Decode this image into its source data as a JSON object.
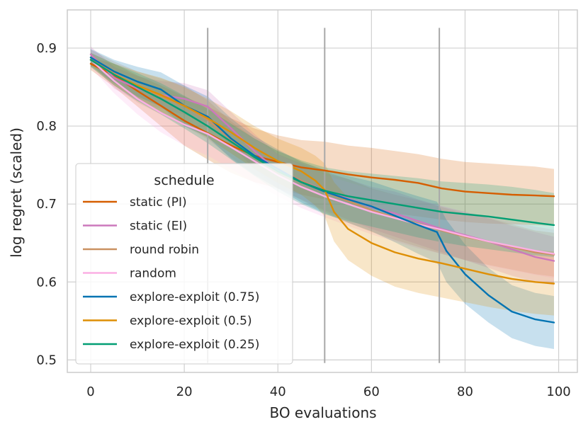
{
  "chart_data": {
    "type": "line",
    "title": "",
    "xlabel": "BO evaluations",
    "ylabel": "log regret (scaled)",
    "xlim": [
      -5,
      104
    ],
    "ylim": [
      0.484,
      0.949
    ],
    "xticks": [
      0,
      20,
      40,
      60,
      80,
      100
    ],
    "yticks": [
      0.5,
      0.6,
      0.7,
      0.8,
      0.9
    ],
    "ytick_labels": [
      "0.5",
      "0.6",
      "0.7",
      "0.8",
      "0.9"
    ],
    "grid": true,
    "legend": {
      "title": "schedule",
      "position": "lower-left"
    },
    "vertical_lines": [
      {
        "x": 25,
        "y_from": 0.496,
        "y_to": 0.926
      },
      {
        "x": 50,
        "y_from": 0.496,
        "y_to": 0.926
      },
      {
        "x": 74.5,
        "y_from": 0.496,
        "y_to": 0.926
      }
    ],
    "series": [
      {
        "name": "static (PI)",
        "color": "#d55e00",
        "x": [
          0,
          5,
          10,
          15,
          20,
          25,
          30,
          35,
          40,
          45,
          50,
          55,
          60,
          65,
          70,
          75,
          80,
          85,
          90,
          95,
          99
        ],
        "y": [
          0.88,
          0.865,
          0.845,
          0.826,
          0.807,
          0.791,
          0.775,
          0.762,
          0.754,
          0.747,
          0.743,
          0.738,
          0.734,
          0.731,
          0.727,
          0.72,
          0.716,
          0.714,
          0.712,
          0.711,
          0.71
        ],
        "lower": [
          0.872,
          0.85,
          0.825,
          0.8,
          0.775,
          0.757,
          0.74,
          0.728,
          0.72,
          0.712,
          0.706,
          0.7,
          0.694,
          0.688,
          0.684,
          0.68,
          0.677,
          0.675,
          0.674,
          0.673,
          0.672
        ],
        "upper": [
          0.888,
          0.88,
          0.865,
          0.852,
          0.838,
          0.825,
          0.81,
          0.797,
          0.788,
          0.782,
          0.78,
          0.775,
          0.772,
          0.768,
          0.764,
          0.758,
          0.754,
          0.752,
          0.75,
          0.748,
          0.745
        ]
      },
      {
        "name": "static (EI)",
        "color": "#cc78bc",
        "x": [
          0,
          5,
          10,
          15,
          20,
          25,
          30,
          35,
          40,
          45,
          50,
          55,
          60,
          65,
          70,
          75,
          80,
          85,
          90,
          95,
          99
        ],
        "y": [
          0.892,
          0.862,
          0.848,
          0.84,
          0.835,
          0.825,
          0.797,
          0.768,
          0.742,
          0.73,
          0.717,
          0.707,
          0.696,
          0.688,
          0.678,
          0.668,
          0.66,
          0.652,
          0.642,
          0.632,
          0.627
        ],
        "lower": [
          0.882,
          0.848,
          0.832,
          0.822,
          0.815,
          0.804,
          0.775,
          0.745,
          0.72,
          0.706,
          0.692,
          0.68,
          0.668,
          0.658,
          0.648,
          0.638,
          0.628,
          0.618,
          0.608,
          0.6,
          0.596
        ],
        "upper": [
          0.902,
          0.876,
          0.864,
          0.858,
          0.855,
          0.846,
          0.818,
          0.79,
          0.764,
          0.752,
          0.74,
          0.732,
          0.722,
          0.716,
          0.706,
          0.697,
          0.69,
          0.682,
          0.672,
          0.664,
          0.658
        ]
      },
      {
        "name": "round robin",
        "color": "#ca9161",
        "x": [
          0,
          5,
          10,
          15,
          20,
          25,
          30,
          35,
          40,
          45,
          50,
          55,
          60,
          65,
          70,
          75,
          80,
          85,
          90,
          95,
          99
        ],
        "y": [
          0.888,
          0.868,
          0.85,
          0.838,
          0.826,
          0.808,
          0.783,
          0.761,
          0.744,
          0.73,
          0.716,
          0.704,
          0.692,
          0.683,
          0.675,
          0.666,
          0.658,
          0.652,
          0.645,
          0.638,
          0.635
        ],
        "lower": [
          0.878,
          0.853,
          0.83,
          0.815,
          0.8,
          0.783,
          0.76,
          0.738,
          0.72,
          0.705,
          0.69,
          0.676,
          0.664,
          0.654,
          0.645,
          0.636,
          0.628,
          0.622,
          0.616,
          0.61,
          0.607
        ],
        "upper": [
          0.898,
          0.883,
          0.87,
          0.861,
          0.852,
          0.833,
          0.806,
          0.784,
          0.768,
          0.755,
          0.742,
          0.732,
          0.72,
          0.712,
          0.705,
          0.696,
          0.688,
          0.682,
          0.674,
          0.666,
          0.663
        ]
      },
      {
        "name": "random",
        "color": "#fbafe4",
        "x": [
          0,
          5,
          10,
          15,
          20,
          25,
          30,
          35,
          40,
          45,
          50,
          55,
          60,
          65,
          70,
          75,
          80,
          85,
          90,
          95,
          99
        ],
        "y": [
          0.885,
          0.858,
          0.835,
          0.817,
          0.802,
          0.79,
          0.773,
          0.755,
          0.737,
          0.722,
          0.71,
          0.7,
          0.69,
          0.682,
          0.674,
          0.667,
          0.659,
          0.652,
          0.646,
          0.64,
          0.636
        ],
        "lower": [
          0.875,
          0.842,
          0.815,
          0.792,
          0.775,
          0.762,
          0.745,
          0.727,
          0.71,
          0.695,
          0.683,
          0.672,
          0.661,
          0.652,
          0.643,
          0.636,
          0.628,
          0.621,
          0.615,
          0.609,
          0.605
        ],
        "upper": [
          0.895,
          0.874,
          0.855,
          0.842,
          0.829,
          0.818,
          0.801,
          0.783,
          0.764,
          0.749,
          0.737,
          0.728,
          0.719,
          0.712,
          0.705,
          0.698,
          0.69,
          0.683,
          0.677,
          0.671,
          0.667
        ]
      },
      {
        "name": "explore-exploit (0.75)",
        "color": "#0173b2",
        "x": [
          0,
          5,
          10,
          15,
          20,
          25,
          30,
          35,
          40,
          45,
          50,
          55,
          60,
          65,
          70,
          74,
          76,
          80,
          85,
          90,
          95,
          99
        ],
        "y": [
          0.888,
          0.87,
          0.857,
          0.847,
          0.826,
          0.812,
          0.784,
          0.762,
          0.745,
          0.728,
          0.716,
          0.706,
          0.697,
          0.685,
          0.673,
          0.664,
          0.64,
          0.61,
          0.583,
          0.562,
          0.552,
          0.548
        ],
        "lower": [
          0.877,
          0.855,
          0.838,
          0.825,
          0.8,
          0.786,
          0.758,
          0.737,
          0.72,
          0.702,
          0.688,
          0.676,
          0.665,
          0.651,
          0.636,
          0.625,
          0.6,
          0.572,
          0.548,
          0.528,
          0.518,
          0.514
        ],
        "upper": [
          0.899,
          0.885,
          0.876,
          0.869,
          0.852,
          0.838,
          0.81,
          0.787,
          0.77,
          0.754,
          0.744,
          0.736,
          0.729,
          0.719,
          0.71,
          0.703,
          0.68,
          0.648,
          0.618,
          0.596,
          0.586,
          0.582
        ]
      },
      {
        "name": "explore-exploit (0.5)",
        "color": "#de8f05",
        "x": [
          0,
          5,
          10,
          15,
          20,
          25,
          30,
          35,
          40,
          45,
          48,
          50,
          52,
          55,
          60,
          65,
          70,
          75,
          80,
          85,
          90,
          95,
          99
        ],
        "y": [
          0.885,
          0.866,
          0.852,
          0.84,
          0.826,
          0.81,
          0.792,
          0.772,
          0.755,
          0.742,
          0.73,
          0.718,
          0.69,
          0.668,
          0.65,
          0.638,
          0.63,
          0.624,
          0.617,
          0.61,
          0.604,
          0.6,
          0.598
        ],
        "lower": [
          0.876,
          0.852,
          0.834,
          0.818,
          0.802,
          0.785,
          0.765,
          0.745,
          0.727,
          0.712,
          0.698,
          0.684,
          0.652,
          0.628,
          0.608,
          0.594,
          0.586,
          0.58,
          0.574,
          0.568,
          0.563,
          0.559,
          0.557
        ],
        "upper": [
          0.894,
          0.88,
          0.87,
          0.862,
          0.85,
          0.835,
          0.819,
          0.8,
          0.784,
          0.772,
          0.762,
          0.752,
          0.728,
          0.708,
          0.692,
          0.682,
          0.674,
          0.668,
          0.66,
          0.652,
          0.646,
          0.641,
          0.639
        ]
      },
      {
        "name": "explore-exploit (0.25)",
        "color": "#029e73",
        "x": [
          0,
          5,
          10,
          15,
          20,
          25,
          30,
          35,
          40,
          45,
          50,
          55,
          60,
          65,
          70,
          75,
          80,
          85,
          90,
          95,
          99
        ],
        "y": [
          0.885,
          0.866,
          0.85,
          0.835,
          0.818,
          0.8,
          0.78,
          0.76,
          0.742,
          0.728,
          0.717,
          0.71,
          0.705,
          0.7,
          0.695,
          0.69,
          0.687,
          0.684,
          0.68,
          0.676,
          0.673
        ],
        "lower": [
          0.876,
          0.852,
          0.832,
          0.815,
          0.797,
          0.778,
          0.757,
          0.736,
          0.716,
          0.7,
          0.687,
          0.678,
          0.671,
          0.664,
          0.657,
          0.651,
          0.646,
          0.642,
          0.638,
          0.634,
          0.632
        ],
        "upper": [
          0.894,
          0.88,
          0.868,
          0.855,
          0.839,
          0.822,
          0.803,
          0.784,
          0.768,
          0.756,
          0.747,
          0.742,
          0.739,
          0.736,
          0.733,
          0.729,
          0.727,
          0.725,
          0.722,
          0.718,
          0.714
        ]
      }
    ]
  }
}
